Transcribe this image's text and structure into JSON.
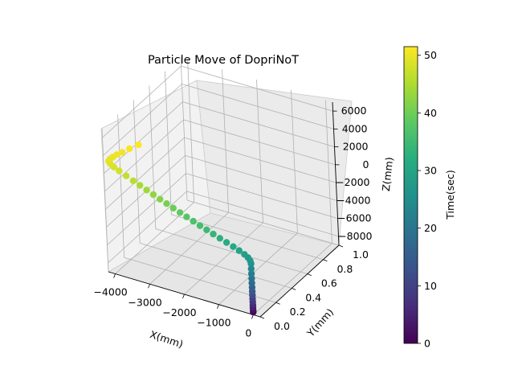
{
  "chart_data": {
    "type": "scatter",
    "projection": "3d",
    "title": "Particle Move of  DopriNoT",
    "xlabel": "X(mm)",
    "ylabel": "Y(mm)",
    "zlabel": "Z(mm)",
    "xlim": [
      -4200,
      200
    ],
    "ylim": [
      0.0,
      1.0
    ],
    "zlim": [
      -9000,
      7000
    ],
    "x_ticks": [
      -4000,
      -3000,
      -2000,
      -1000,
      0
    ],
    "x_tick_labels": [
      "−4000",
      "−3000",
      "−2000",
      "−1000",
      "0"
    ],
    "y_ticks": [
      0.0,
      0.2,
      0.4,
      0.6,
      0.8,
      1.0
    ],
    "y_tick_labels": [
      "0.0",
      "0.2",
      "0.4",
      "0.6",
      "0.8",
      "1.0"
    ],
    "z_ticks": [
      -8000,
      -6000,
      -4000,
      -2000,
      0,
      2000,
      4000,
      6000
    ],
    "z_tick_labels": [
      "−8000",
      "−6000",
      "−4000",
      "−2000",
      "0",
      "2000",
      "4000",
      "6000"
    ],
    "grid": true,
    "colormap": "viridis",
    "colorbar": {
      "label": "Time(sec)",
      "range": [
        0,
        51.5
      ],
      "ticks": [
        0,
        10,
        20,
        30,
        40,
        50
      ],
      "tick_labels": [
        "0",
        "10",
        "20",
        "30",
        "40",
        "50"
      ]
    },
    "series": [
      {
        "points": [
          {
            "t": 0,
            "x": 0,
            "y": 0.0,
            "z": -8700
          },
          {
            "t": 2,
            "x": 0,
            "y": 0.0,
            "z": -8500
          },
          {
            "t": 4,
            "x": 0,
            "y": 0.0,
            "z": -8200
          },
          {
            "t": 6,
            "x": 0,
            "y": 0.0,
            "z": -7900
          },
          {
            "t": 8,
            "x": 0,
            "y": 0.0,
            "z": -7550
          },
          {
            "t": 10,
            "x": 0,
            "y": 0.0,
            "z": -7200
          },
          {
            "t": 12,
            "x": 0,
            "y": 0.0,
            "z": -6800
          },
          {
            "t": 14,
            "x": 0,
            "y": 0.0,
            "z": -6400
          },
          {
            "t": 16,
            "x": 0,
            "y": 0.0,
            "z": -5950
          },
          {
            "t": 18,
            "x": 0,
            "y": 0.0,
            "z": -5450
          },
          {
            "t": 20,
            "x": 0,
            "y": 0.0,
            "z": -4950
          },
          {
            "t": 22,
            "x": 0,
            "y": 0.0,
            "z": -4400
          },
          {
            "t": 24,
            "x": 0,
            "y": 0.0,
            "z": -3850
          },
          {
            "t": 26,
            "x": 0,
            "y": 0.0,
            "z": -3300
          },
          {
            "t": 27,
            "x": -20,
            "y": 0.0,
            "z": -3000
          },
          {
            "t": 28,
            "x": -80,
            "y": 0.0,
            "z": -2700
          },
          {
            "t": 29,
            "x": -180,
            "y": 0.0,
            "z": -2450
          },
          {
            "t": 30,
            "x": -330,
            "y": 0.0,
            "z": -2200
          },
          {
            "t": 31,
            "x": -500,
            "y": 0.0,
            "z": -1950
          },
          {
            "t": 32,
            "x": -690,
            "y": 0.0,
            "z": -1700
          },
          {
            "t": 33,
            "x": -880,
            "y": 0.0,
            "z": -1450
          },
          {
            "t": 34,
            "x": -1070,
            "y": 0.0,
            "z": -1200
          },
          {
            "t": 35,
            "x": -1260,
            "y": 0.0,
            "z": -940
          },
          {
            "t": 36,
            "x": -1450,
            "y": 0.0,
            "z": -690
          },
          {
            "t": 37,
            "x": -1640,
            "y": 0.0,
            "z": -420
          },
          {
            "t": 38,
            "x": -1830,
            "y": 0.0,
            "z": -150
          },
          {
            "t": 39,
            "x": -2020,
            "y": 0.0,
            "z": 120
          },
          {
            "t": 40,
            "x": -2210,
            "y": 0.0,
            "z": 400
          },
          {
            "t": 41,
            "x": -2400,
            "y": 0.0,
            "z": 680
          },
          {
            "t": 42,
            "x": -2590,
            "y": 0.0,
            "z": 960
          },
          {
            "t": 43,
            "x": -2780,
            "y": 0.0,
            "z": 1250
          },
          {
            "t": 44,
            "x": -2970,
            "y": 0.0,
            "z": 1550
          },
          {
            "t": 45,
            "x": -3160,
            "y": 0.0,
            "z": 1850
          },
          {
            "t": 46,
            "x": -3350,
            "y": 0.0,
            "z": 2150
          },
          {
            "t": 47,
            "x": -3550,
            "y": 0.0,
            "z": 2470
          },
          {
            "t": 48,
            "x": -3750,
            "y": 0.0,
            "z": 2800
          },
          {
            "t": 48.5,
            "x": -3900,
            "y": 0.0,
            "z": 3050
          },
          {
            "t": 49,
            "x": -4000,
            "y": 0.0,
            "z": 3300
          },
          {
            "t": 49.3,
            "x": -4050,
            "y": 0.0,
            "z": 3550
          },
          {
            "t": 49.6,
            "x": -4000,
            "y": 0.0,
            "z": 3850
          },
          {
            "t": 49.9,
            "x": -3920,
            "y": 0.0,
            "z": 4150
          },
          {
            "t": 50.2,
            "x": -3800,
            "y": 0.0,
            "z": 4550
          },
          {
            "t": 50.6,
            "x": -3640,
            "y": 0.0,
            "z": 5000
          },
          {
            "t": 51,
            "x": -3420,
            "y": 0.0,
            "z": 5650
          },
          {
            "t": 51.5,
            "x": -3150,
            "y": 0.0,
            "z": 6400
          }
        ]
      }
    ]
  }
}
